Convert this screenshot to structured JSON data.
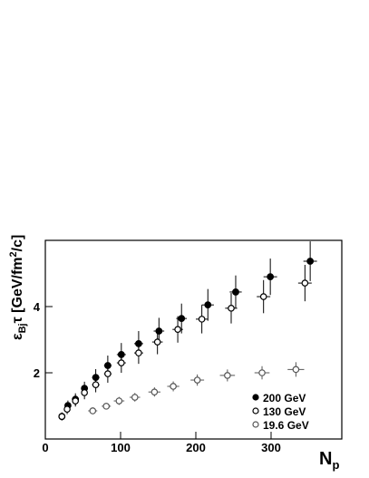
{
  "chart_data": {
    "type": "scatter",
    "x_label": {
      "main": "N",
      "sub": "p"
    },
    "y_label": {
      "symbol": "ε",
      "sub": "Bj",
      "main": "τ [GeV/fm",
      "sup": "2",
      "tail": "/c]"
    },
    "xlim": [
      0,
      394
    ],
    "ylim": [
      0,
      6
    ],
    "xticks": [
      0,
      100,
      200,
      300
    ],
    "yticks": [
      2,
      4
    ],
    "legend": "lower right",
    "series": [
      {
        "name": "200 GeV",
        "color": "#000000",
        "marker": "filled",
        "x": [
          22,
          30,
          40,
          52,
          67,
          83,
          101,
          124,
          151,
          181,
          216,
          253,
          299,
          352
        ],
        "values": [
          0.68,
          1.01,
          1.2,
          1.53,
          1.86,
          2.22,
          2.55,
          2.88,
          3.26,
          3.64,
          4.05,
          4.44,
          4.9,
          5.37
        ],
        "yerr": [
          0.12,
          0.15,
          0.18,
          0.2,
          0.25,
          0.3,
          0.35,
          0.38,
          0.4,
          0.45,
          0.48,
          0.5,
          0.55,
          0.6
        ],
        "xerr": [
          3,
          3,
          4,
          4,
          5,
          5,
          6,
          6,
          7,
          7,
          8,
          8,
          9,
          9
        ]
      },
      {
        "name": "130 GeV",
        "color": "#000000",
        "marker": "open",
        "x": [
          22,
          29,
          40,
          52,
          67,
          83,
          101,
          124,
          149,
          176,
          208,
          247,
          290,
          345
        ],
        "values": [
          0.68,
          0.9,
          1.15,
          1.4,
          1.64,
          1.97,
          2.3,
          2.6,
          2.93,
          3.31,
          3.62,
          3.95,
          4.3,
          4.71
        ],
        "yerr": [
          0.12,
          0.15,
          0.17,
          0.2,
          0.23,
          0.27,
          0.3,
          0.33,
          0.37,
          0.4,
          0.43,
          0.46,
          0.5,
          0.55
        ],
        "xerr": [
          3,
          3,
          4,
          4,
          5,
          5,
          6,
          6,
          7,
          7,
          8,
          8,
          9,
          9
        ]
      },
      {
        "name": "19.6 GeV",
        "color": "#555555",
        "marker": "open",
        "x": [
          63,
          81,
          98,
          119,
          145,
          170,
          202,
          242,
          288,
          333
        ],
        "values": [
          0.85,
          0.99,
          1.15,
          1.26,
          1.42,
          1.59,
          1.78,
          1.92,
          2.0,
          2.1
        ],
        "yerr": [
          0.1,
          0.1,
          0.12,
          0.13,
          0.14,
          0.15,
          0.17,
          0.18,
          0.2,
          0.22
        ],
        "xerr": [
          6,
          6,
          7,
          7,
          8,
          8,
          9,
          10,
          10,
          11
        ]
      }
    ]
  }
}
